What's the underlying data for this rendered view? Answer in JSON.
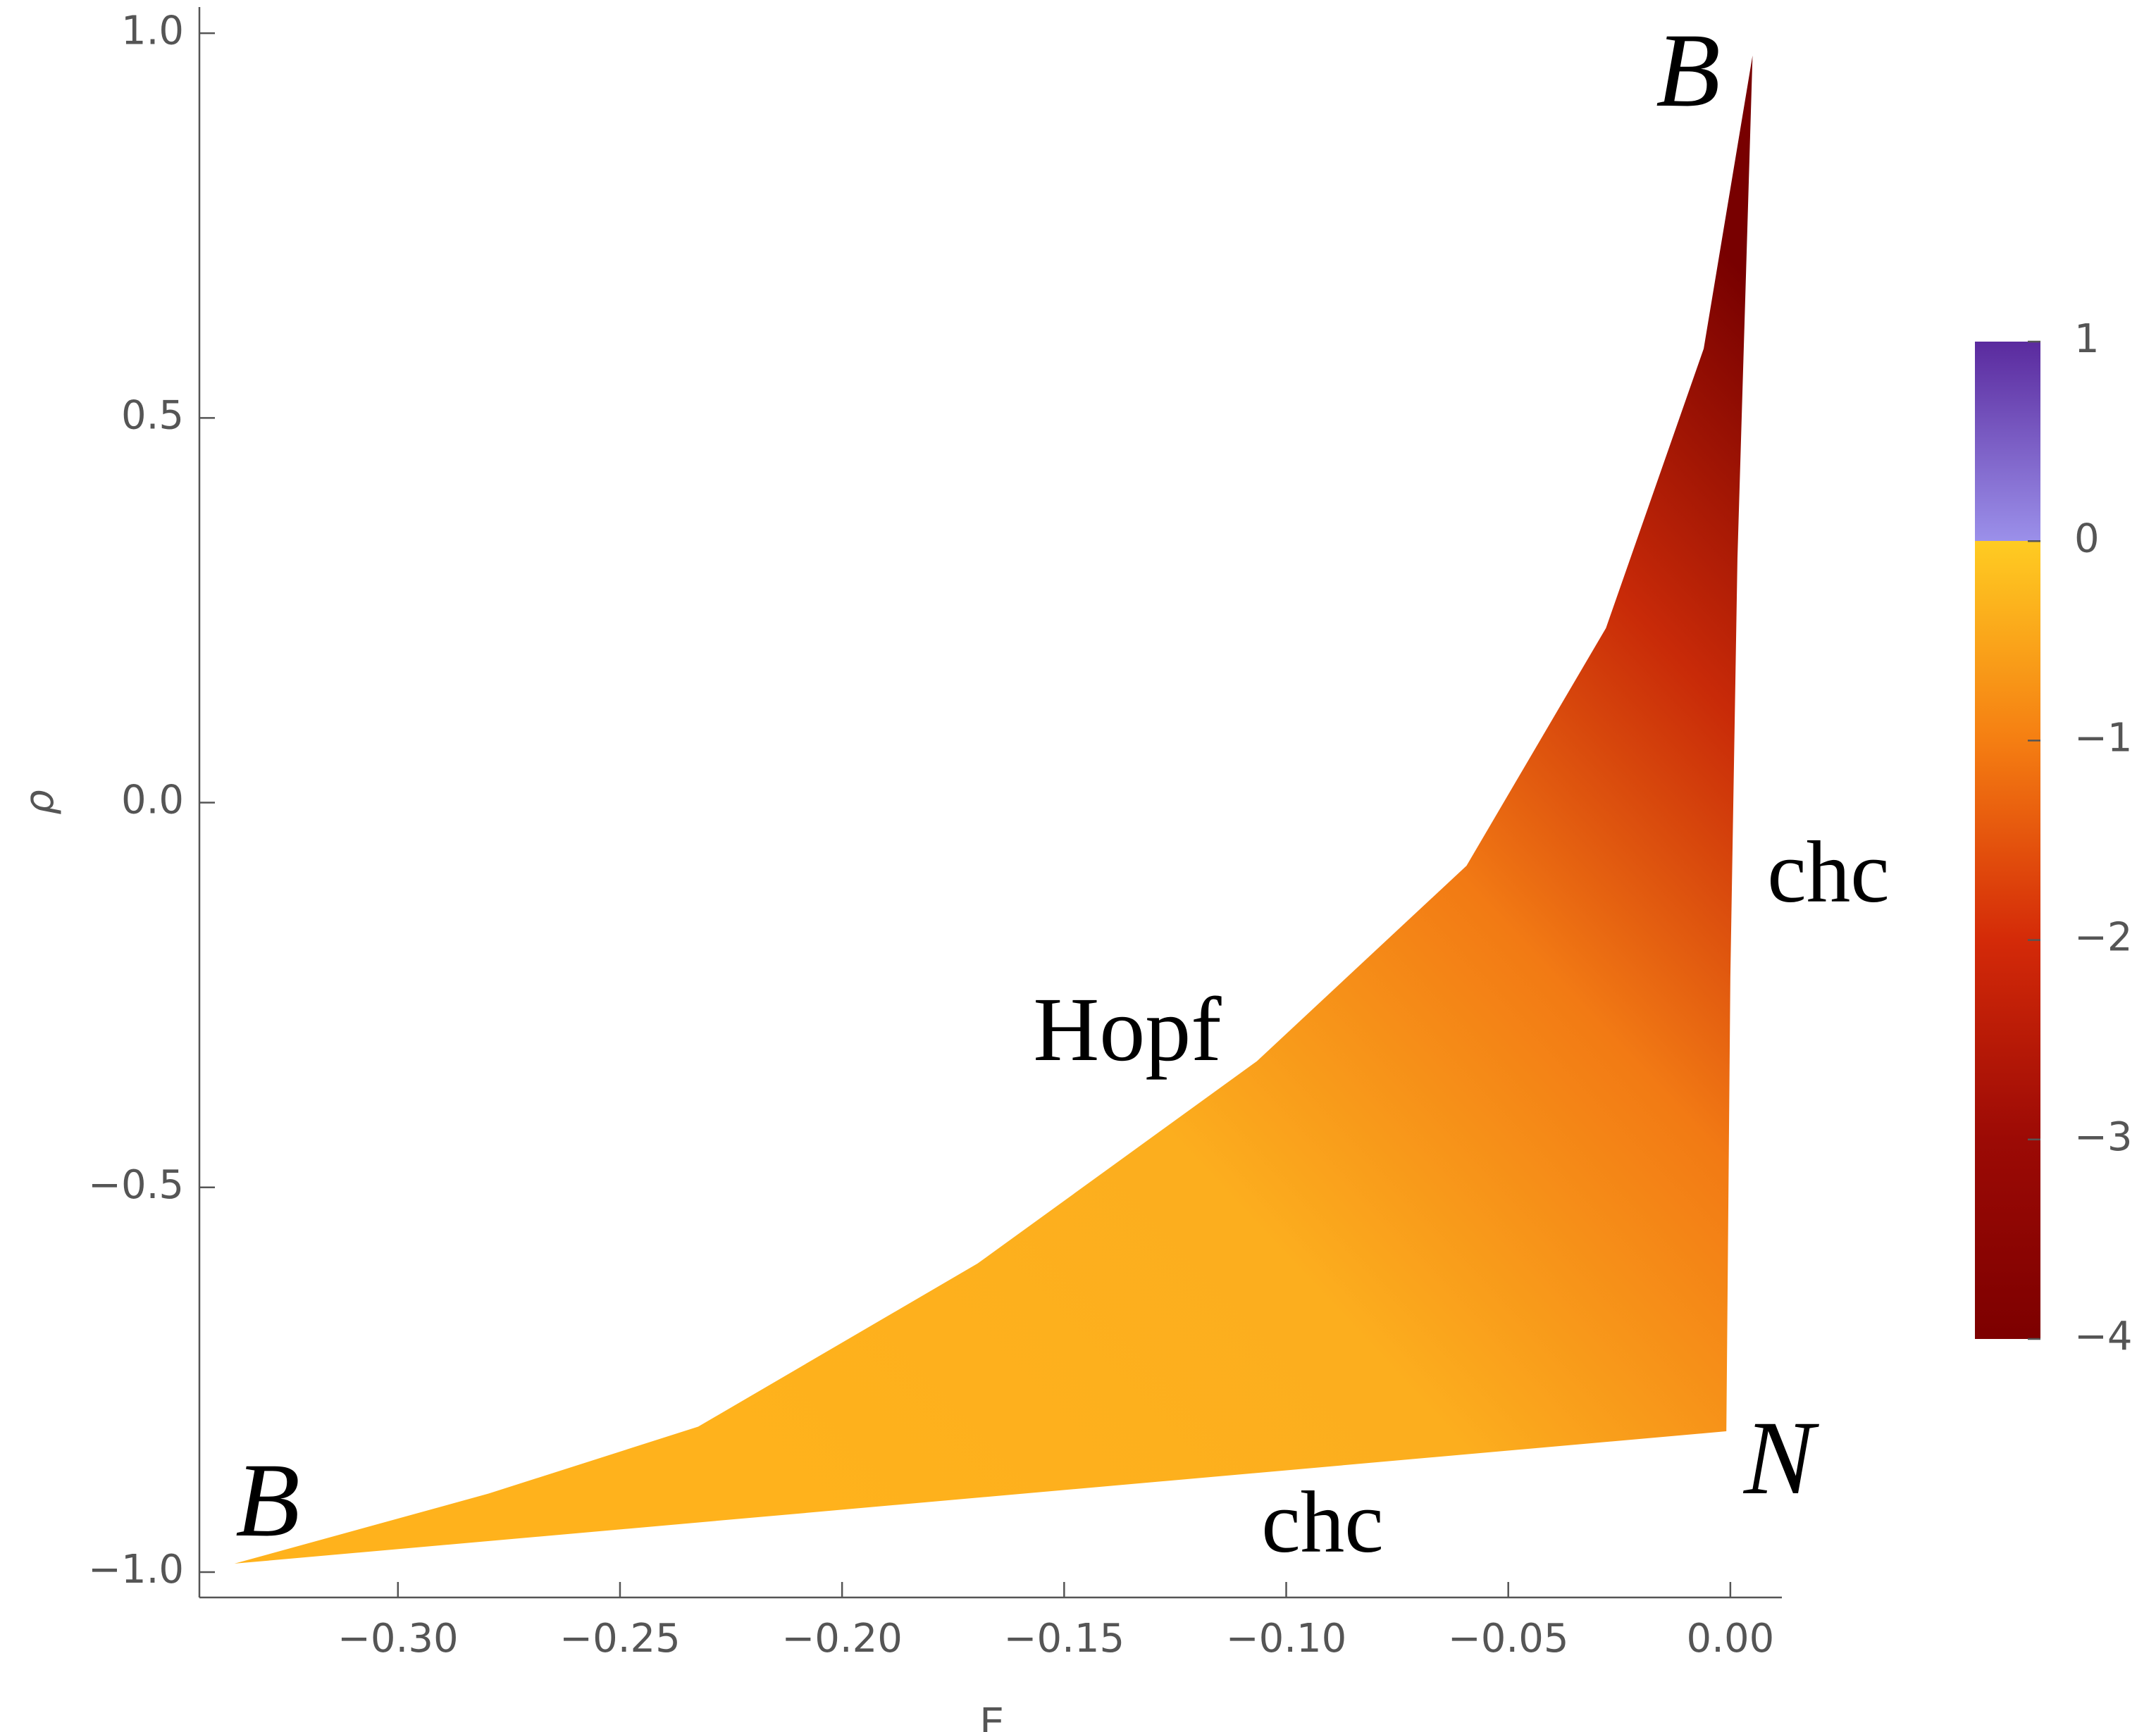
{
  "chart_data": {
    "type": "region",
    "xlabel": "E",
    "ylabel": "ρ",
    "xlim": [
      -0.3447,
      0.0116
    ],
    "ylim": [
      -1.033,
      1.034
    ],
    "xticks": [
      {
        "value": -0.3,
        "label": "−0.30"
      },
      {
        "value": -0.25,
        "label": "−0.25"
      },
      {
        "value": -0.2,
        "label": "−0.20"
      },
      {
        "value": -0.15,
        "label": "−0.15"
      },
      {
        "value": -0.1,
        "label": "−0.10"
      },
      {
        "value": -0.05,
        "label": "−0.05"
      },
      {
        "value": 0,
        "label": "0.00"
      }
    ],
    "yticks": [
      {
        "value": 1,
        "label": "1.0"
      },
      0.5,
      {
        "value": 0,
        "label": "0.0"
      },
      {
        "value": -0.5,
        "label": "−0.5"
      },
      {
        "value": -1,
        "label": "−1.0"
      }
    ],
    "boundary": {
      "x": [
        -0.3368,
        -0.2796,
        -0.2324,
        -0.1695,
        -0.1066,
        -0.0594,
        -0.028,
        -0.006,
        0.005,
        0.0016,
        0,
        -0.0009
      ],
      "y": [
        -0.989,
        -0.898,
        -0.811,
        -0.599,
        -0.336,
        -0.082,
        0.227,
        0.59,
        0.971,
        0.318,
        -0.227,
        -0.817
      ]
    },
    "annotations": [
      "B",
      "B",
      "N",
      "Hopf",
      "chc",
      "chc"
    ],
    "colorbar": {
      "lim": [
        -4,
        1
      ],
      "ticks": [
        1,
        0,
        {
          "value": -1,
          "label": "−1"
        },
        {
          "value": -2,
          "label": "−2"
        },
        {
          "value": -3,
          "label": "−3"
        },
        {
          "value": -4,
          "label": "−4"
        }
      ],
      "stops": [
        {
          "value": 1,
          "color": "#5a2a9e"
        },
        {
          "value": 0,
          "color": "#9b90ea"
        },
        {
          "value": 0,
          "color": "#ffcc22"
        },
        {
          "value": -1,
          "color": "#f57e12"
        },
        {
          "value": -2,
          "color": "#d42a08"
        },
        {
          "value": -3,
          "color": "#9c0a05"
        },
        {
          "value": -4,
          "color": "#7d0000"
        }
      ]
    }
  }
}
